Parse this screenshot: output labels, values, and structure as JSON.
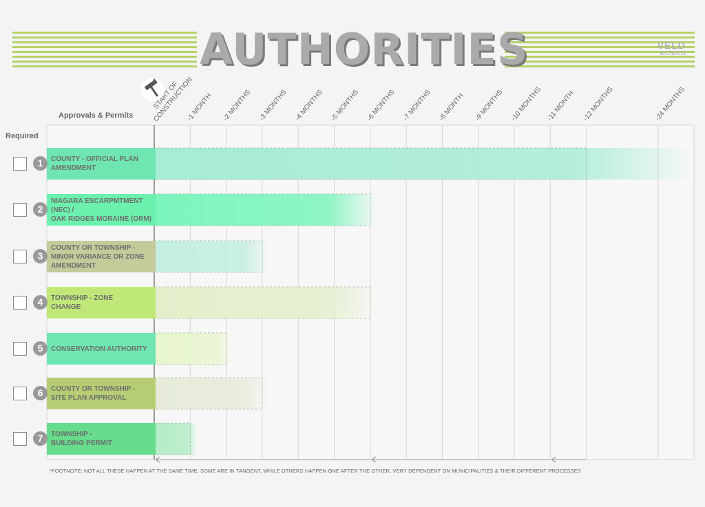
{
  "header": {
    "title": "AUTHORITIES",
    "brand_name": "VELD",
    "brand_sub": "architect"
  },
  "labels": {
    "approvals": "Approvals & Permits",
    "required": "Required"
  },
  "columns": [
    "START OF CONSTRUCTION",
    "-1 MONTH",
    "-2 MONTHS",
    "-3 MONTHS",
    "-4 MONTHS",
    "-5 MONTHS",
    "-6 MONTHS",
    "-7 MONTHS",
    "-8 MONTH",
    "-9 MONTHS",
    "-10 MONTHS",
    "-11 MONTH",
    "-12 MONTHS",
    "-24 MONTHS"
  ],
  "rows": [
    {
      "number": "1",
      "lines": [
        "COUNTY - OFFICIAL PLAN",
        "AMENDMENT"
      ],
      "label_color": "#6fe6b2",
      "bar_color": "#a8ecd4",
      "months": 12,
      "checked": false
    },
    {
      "number": "2",
      "lines": [
        "NIAGARA ESCARPMTMENT",
        "(NEC) /",
        "OAK RIDGES MORAINE (ORM)"
      ],
      "label_color": "#6cf0ad",
      "bar_color": "#7cf5bd",
      "months": 6,
      "checked": false
    },
    {
      "number": "3",
      "lines": [
        "COUNTY OR TOWNSHIP -",
        "MINOR VARIANCE OR ZONE",
        "AMENDMENT"
      ],
      "label_color": "#c5ca9a",
      "bar_color": "#c3eee2",
      "months": 3,
      "checked": false
    },
    {
      "number": "4",
      "lines": [
        "TOWNSHIP - ZONE",
        "CHANGE"
      ],
      "label_color": "#c0e878",
      "bar_color": "#e3efcb",
      "months": 6,
      "checked": false
    },
    {
      "number": "5",
      "lines": [
        "CONSERVATION AUTHORITY"
      ],
      "label_color": "#6fe6b2",
      "bar_color": "#e8f6cf",
      "months": 2,
      "checked": false
    },
    {
      "number": "6",
      "lines": [
        "COUNTY OR TOWNSHIP -",
        "SITE PLAN APPROVAL"
      ],
      "label_color": "#b5cd73",
      "bar_color": "#e6ebda",
      "months": 3,
      "checked": false
    },
    {
      "number": "7",
      "lines": [
        "TOWNSHIP -",
        "BUILDING PERMIT"
      ],
      "label_color": "#66dc8c",
      "bar_color": "#b5ecc6",
      "months": 1,
      "checked": false
    }
  ],
  "footnote": "*FOOTNOTE: NOT ALL THESE HAPPEN AT THE SAME TIME, SOME ARE IN TANGENT, WHILE OTHERS HAPPEN ONE AFTER THE OTHER, VERY DEPENDENT ON MUNICIPALITIES & THEIR DIFFERENT PROCESSES",
  "colors": {
    "stripe": "#b3d36a",
    "grid": "#d6d6d6",
    "title": "#aaaaaa"
  },
  "icons": [
    "hammer-icon"
  ]
}
